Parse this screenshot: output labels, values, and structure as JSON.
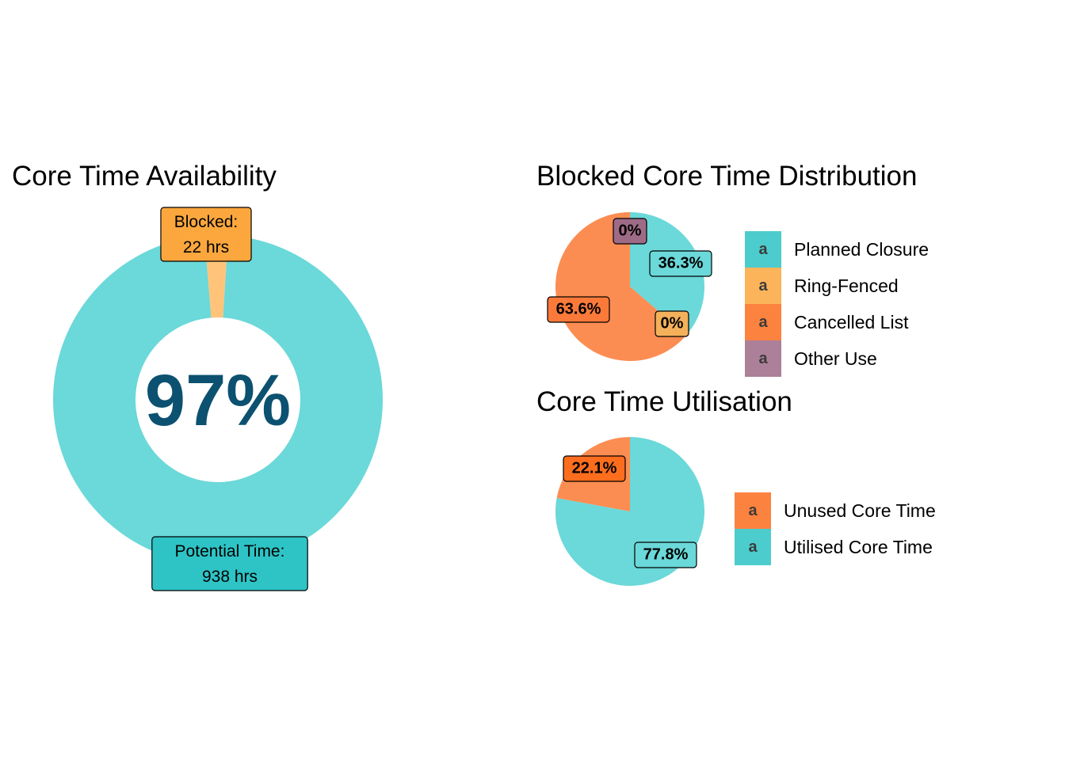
{
  "colors": {
    "teal": "#6bd8d9",
    "teal_dark": "#2ec4c6",
    "orange_light": "#ffc47a",
    "orange": "#fba73e",
    "coral": "#fc8d52",
    "red_orange": "#fc6d1e",
    "mauve": "#9e6b87",
    "center_text": "#0c5170"
  },
  "chart_data": [
    {
      "type": "pie",
      "variant": "donut",
      "title": "Core Time Availability",
      "center_label": "97%",
      "slices": [
        {
          "name": "Blocked",
          "value": 22,
          "color": "#ffc47a",
          "label_line1": "Blocked:",
          "label_line2": "22 hrs",
          "label_fill": "#fba73e"
        },
        {
          "name": "Potential Time",
          "value": 938,
          "color": "#6bd8d9",
          "label_line1": "Potential Time:",
          "label_line2": "938 hrs",
          "label_fill": "#2ec4c6"
        }
      ]
    },
    {
      "type": "pie",
      "title": "Blocked Core Time Distribution",
      "slices": [
        {
          "name": "Planned Closure",
          "value": 36.3,
          "label": "36.3%",
          "color": "#6bd8d9",
          "label_fill": "#6bd8d9"
        },
        {
          "name": "Ring-Fenced",
          "value": 0,
          "label": "0%",
          "color": "#fba73e",
          "label_fill": "#f4b05a"
        },
        {
          "name": "Cancelled List",
          "value": 63.6,
          "label": "63.6%",
          "color": "#fc8d52",
          "label_fill": "#fb7a3a"
        },
        {
          "name": "Other Use",
          "value": 0,
          "label": "0%",
          "color": "#9e6b87",
          "label_fill": "#9e6b87"
        }
      ],
      "legend": {
        "key_glyph": "a",
        "items": [
          {
            "label": "Planned Closure",
            "color": "#2ec4c6"
          },
          {
            "label": "Ring-Fenced",
            "color": "#fba73e"
          },
          {
            "label": "Cancelled List",
            "color": "#fc6d1e"
          },
          {
            "label": "Other Use",
            "color": "#9e6b87"
          }
        ]
      }
    },
    {
      "type": "pie",
      "title": "Core Time Utilisation",
      "slices": [
        {
          "name": "Unused Core Time",
          "value": 22.1,
          "label": "22.1%",
          "color": "#fc8d52",
          "label_fill": "#fc6d1e"
        },
        {
          "name": "Utilised Core Time",
          "value": 77.8,
          "label": "77.8%",
          "color": "#6bd8d9",
          "label_fill": "#6bd8d9"
        }
      ],
      "legend": {
        "key_glyph": "a",
        "items": [
          {
            "label": "Unused Core Time",
            "color": "#fc6d1e"
          },
          {
            "label": "Utilised Core Time",
            "color": "#2ec4c6"
          }
        ]
      }
    }
  ]
}
